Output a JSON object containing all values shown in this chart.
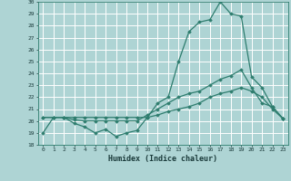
{
  "xlabel": "Humidex (Indice chaleur)",
  "xlim": [
    -0.5,
    23.5
  ],
  "ylim": [
    18,
    30
  ],
  "yticks": [
    18,
    19,
    20,
    21,
    22,
    23,
    24,
    25,
    26,
    27,
    28,
    29,
    30
  ],
  "xticks": [
    0,
    1,
    2,
    3,
    4,
    5,
    6,
    7,
    8,
    9,
    10,
    11,
    12,
    13,
    14,
    15,
    16,
    17,
    18,
    19,
    20,
    21,
    22,
    23
  ],
  "bg_color": "#aed4d4",
  "grid_color": "#ffffff",
  "line_color": "#2e7d6e",
  "line1": [
    19.0,
    20.3,
    20.3,
    19.8,
    19.5,
    19.0,
    19.3,
    18.7,
    19.0,
    19.2,
    20.3,
    21.5,
    22.0,
    25.0,
    27.5,
    28.3,
    28.5,
    30.0,
    29.0,
    28.8,
    23.7,
    22.8,
    21.2,
    20.2
  ],
  "line2": [
    20.3,
    20.3,
    20.3,
    20.1,
    20.0,
    20.0,
    20.0,
    20.0,
    20.0,
    20.0,
    20.5,
    21.0,
    21.5,
    22.0,
    22.3,
    22.5,
    23.0,
    23.5,
    23.8,
    24.3,
    22.8,
    21.5,
    21.2,
    20.2
  ],
  "line3": [
    20.3,
    20.3,
    20.3,
    20.3,
    20.3,
    20.3,
    20.3,
    20.3,
    20.3,
    20.3,
    20.3,
    20.5,
    20.8,
    21.0,
    21.2,
    21.5,
    22.0,
    22.3,
    22.5,
    22.8,
    22.5,
    22.0,
    21.0,
    20.2
  ]
}
